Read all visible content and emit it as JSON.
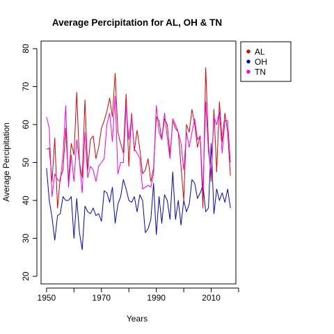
{
  "chart_data": {
    "type": "line",
    "title": "Average Percipitation for AL, OH & TN",
    "xlabel": "Years",
    "ylabel": "Average Percipitation",
    "xlim": [
      1948,
      2019
    ],
    "ylim": [
      18,
      82
    ],
    "x_ticks": [
      1950,
      1970,
      1990,
      2010
    ],
    "x_tick_marks": [
      1950,
      1960,
      1970,
      1980,
      1990,
      2000,
      2010,
      2020
    ],
    "y_ticks": [
      20,
      30,
      40,
      50,
      60,
      70,
      80
    ],
    "grid": false,
    "legend_position": "top-right",
    "x": [
      1950,
      1951,
      1952,
      1953,
      1954,
      1955,
      1956,
      1957,
      1958,
      1959,
      1960,
      1961,
      1962,
      1963,
      1964,
      1965,
      1966,
      1967,
      1968,
      1969,
      1970,
      1971,
      1972,
      1973,
      1974,
      1975,
      1976,
      1977,
      1978,
      1979,
      1980,
      1981,
      1982,
      1983,
      1984,
      1985,
      1986,
      1987,
      1988,
      1989,
      1990,
      1991,
      1992,
      1993,
      1994,
      1995,
      1996,
      1997,
      1998,
      1999,
      2000,
      2001,
      2002,
      2003,
      2004,
      2005,
      2006,
      2007,
      2008,
      2009,
      2010,
      2011,
      2012,
      2013,
      2014,
      2015,
      2016,
      2017
    ],
    "series": [
      {
        "name": "AL",
        "color": "#dd0000",
        "values": [
          53.5,
          53.8,
          45,
          56.5,
          38,
          46,
          48,
          59,
          45,
          55,
          52,
          68.5,
          50,
          46,
          66.5,
          48,
          56,
          57,
          51,
          54,
          59,
          61,
          63.5,
          67,
          62,
          73.5,
          58,
          55,
          52.5,
          68,
          49,
          63,
          53,
          58.5,
          53.5,
          47,
          48,
          51,
          45,
          48.5,
          62,
          61,
          56,
          61.5,
          60,
          52,
          61,
          59,
          58,
          49,
          40,
          60,
          58,
          64,
          60,
          54,
          57,
          38,
          75,
          55,
          45,
          64,
          47.5,
          66,
          55.5,
          63,
          58,
          46.5
        ]
      },
      {
        "name": "OH",
        "color": "#0000cc",
        "values": [
          48.5,
          40,
          35.5,
          29.5,
          36,
          36.5,
          41,
          40,
          40,
          41,
          30,
          40.5,
          31.5,
          27,
          38.5,
          37,
          36.5,
          38,
          36,
          36.5,
          34.5,
          42.5,
          42,
          39.5,
          43.5,
          34,
          39,
          41,
          45.5,
          43,
          40,
          39.5,
          41,
          37,
          41.5,
          40,
          31.5,
          32.5,
          35,
          44.5,
          31,
          41,
          34,
          41.5,
          40,
          35,
          47.5,
          35,
          40,
          33.5,
          40,
          37,
          39,
          45.5,
          44.5,
          40.5,
          42,
          44,
          37,
          38,
          55,
          36.5,
          43,
          40,
          42,
          39.5,
          43,
          38
        ]
      },
      {
        "name": "TN",
        "color": "#ee00ee",
        "values": [
          62,
          59,
          41,
          47,
          45.5,
          45,
          52,
          65,
          43.5,
          52,
          45,
          56,
          50,
          42,
          58,
          46,
          49,
          48,
          45,
          49,
          50,
          51,
          60,
          63,
          55.5,
          67.5,
          47,
          50,
          50,
          65,
          56,
          62,
          53.5,
          52.5,
          51,
          43,
          43.5,
          44,
          43.5,
          47,
          65,
          58,
          56,
          63,
          56.5,
          51,
          61.5,
          60,
          58,
          55,
          48,
          58,
          54,
          58,
          61.5,
          56,
          57,
          42,
          66,
          53,
          47,
          62,
          60,
          63.5,
          52.5,
          61,
          61,
          50
        ]
      }
    ]
  }
}
